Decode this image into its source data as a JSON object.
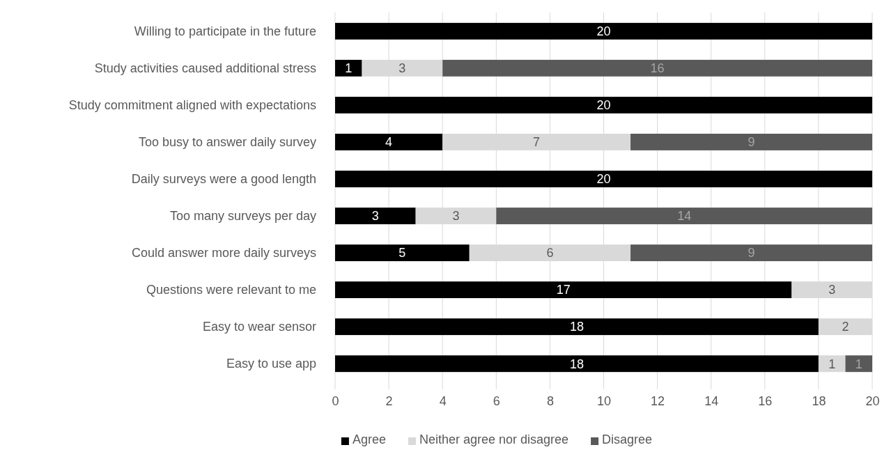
{
  "chart_data": {
    "type": "bar",
    "orientation": "horizontal",
    "stacked": true,
    "categories": [
      "Willing to participate in the future",
      "Study activities caused additional stress",
      "Study commitment aligned with expectations",
      "Too busy to answer daily survey",
      "Daily surveys were a good length",
      "Too many surveys per day",
      "Could answer more daily surveys",
      "Questions were relevant to me",
      "Easy to wear sensor",
      "Easy to use app"
    ],
    "series": [
      {
        "name": "Agree",
        "color": "#000000",
        "values": [
          20,
          1,
          20,
          4,
          20,
          3,
          5,
          17,
          18,
          18
        ]
      },
      {
        "name": "Neither agree nor disagree",
        "color": "#d9d9d9",
        "values": [
          null,
          3,
          null,
          7,
          null,
          3,
          6,
          3,
          2,
          1
        ]
      },
      {
        "name": "Disagree",
        "color": "#595959",
        "values": [
          null,
          16,
          null,
          9,
          null,
          14,
          9,
          null,
          null,
          1
        ]
      }
    ],
    "xlim": [
      0,
      20
    ],
    "xticks": [
      0,
      2,
      4,
      6,
      8,
      10,
      12,
      14,
      16,
      18,
      20
    ],
    "grid": "x",
    "legend": "bottom",
    "data_labels": true
  }
}
